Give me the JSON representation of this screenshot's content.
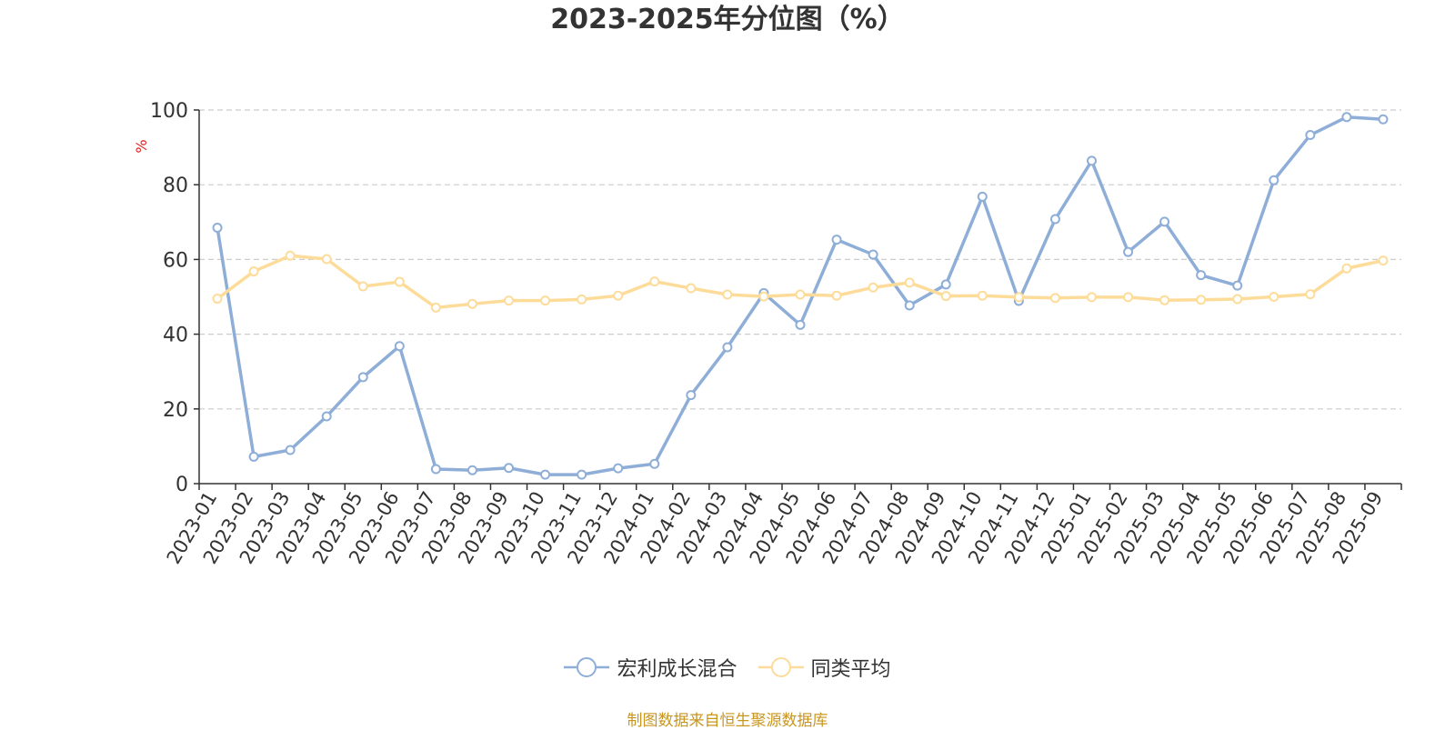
{
  "chart_data": {
    "type": "line",
    "title": "2023-2025年分位图（%）",
    "ylabel": "%",
    "ylim": [
      0,
      100
    ],
    "yticks": [
      0,
      20,
      40,
      60,
      80,
      100
    ],
    "grid": true,
    "legend_position": "bottom-center",
    "categories": [
      "2023-01",
      "2023-02",
      "2023-03",
      "2023-04",
      "2023-05",
      "2023-06",
      "2023-07",
      "2023-08",
      "2023-09",
      "2023-10",
      "2023-11",
      "2023-12",
      "2024-01",
      "2024-02",
      "2024-03",
      "2024-04",
      "2024-05",
      "2024-06",
      "2024-07",
      "2024-08",
      "2024-09",
      "2024-10",
      "2024-11",
      "2024-12",
      "2025-01",
      "2025-02",
      "2025-03",
      "2025-04",
      "2025-05",
      "2025-06",
      "2025-07",
      "2025-08",
      "2025-09"
    ],
    "series": [
      {
        "name": "宏利成长混合",
        "color": "#8eaed8",
        "values": [
          68.5,
          7.2,
          9.0,
          18.0,
          28.5,
          36.8,
          3.9,
          3.6,
          4.2,
          2.4,
          2.4,
          4.1,
          5.3,
          23.7,
          36.5,
          51.0,
          42.5,
          65.3,
          61.3,
          47.7,
          53.3,
          76.8,
          48.9,
          70.8,
          86.4,
          62.0,
          70.1,
          55.8,
          53.0,
          81.2,
          93.3,
          98.1,
          97.5
        ]
      },
      {
        "name": "同类平均",
        "color": "#fddc9a",
        "values": [
          49.5,
          56.8,
          61.0,
          60.1,
          52.8,
          54.0,
          47.1,
          48.1,
          49.0,
          49.0,
          49.3,
          50.3,
          54.1,
          52.3,
          50.6,
          50.1,
          50.6,
          50.3,
          52.5,
          53.8,
          50.2,
          50.3,
          49.9,
          49.7,
          49.9,
          49.9,
          49.1,
          49.2,
          49.4,
          50.0,
          50.7,
          57.6,
          59.7
        ]
      }
    ]
  },
  "footer": {
    "source": "制图数据来自恒生聚源数据库"
  }
}
